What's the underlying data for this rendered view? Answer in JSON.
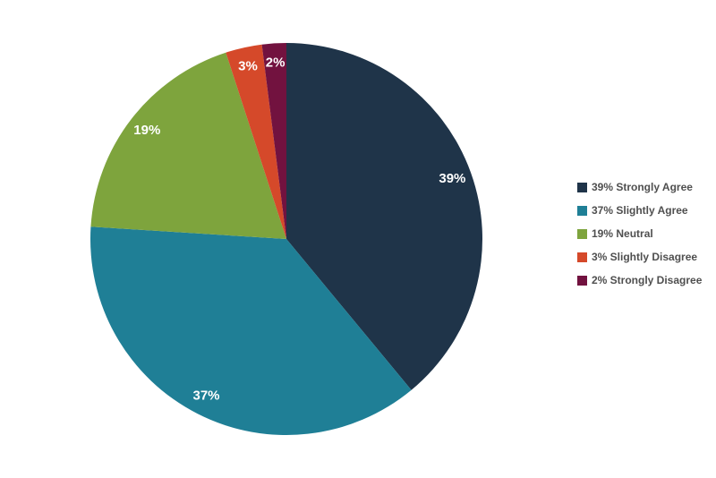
{
  "chart_data": {
    "type": "pie",
    "title": "",
    "categories": [
      "Strongly Agree",
      "Slightly Agree",
      "Neutral",
      "Slightly Disagree",
      "Strongly Disagree"
    ],
    "values": [
      39,
      37,
      19,
      3,
      2
    ],
    "labels": [
      "39%",
      "37%",
      "19%",
      "3%",
      "2%"
    ],
    "colors": [
      "#1f3449",
      "#1f7f96",
      "#7ea43d",
      "#d5492a",
      "#72123f"
    ],
    "legend_entries": [
      "39% Strongly Agree",
      "37% Slightly Agree",
      "19% Neutral",
      "3% Slightly Disagree",
      "2% Strongly Disagree"
    ],
    "legend_position": "right",
    "start_angle": 0,
    "direction": "clockwise",
    "slice_label_color": "#ffffff",
    "legend_text_color": "#4f4f4f",
    "background_color": "#ffffff"
  }
}
